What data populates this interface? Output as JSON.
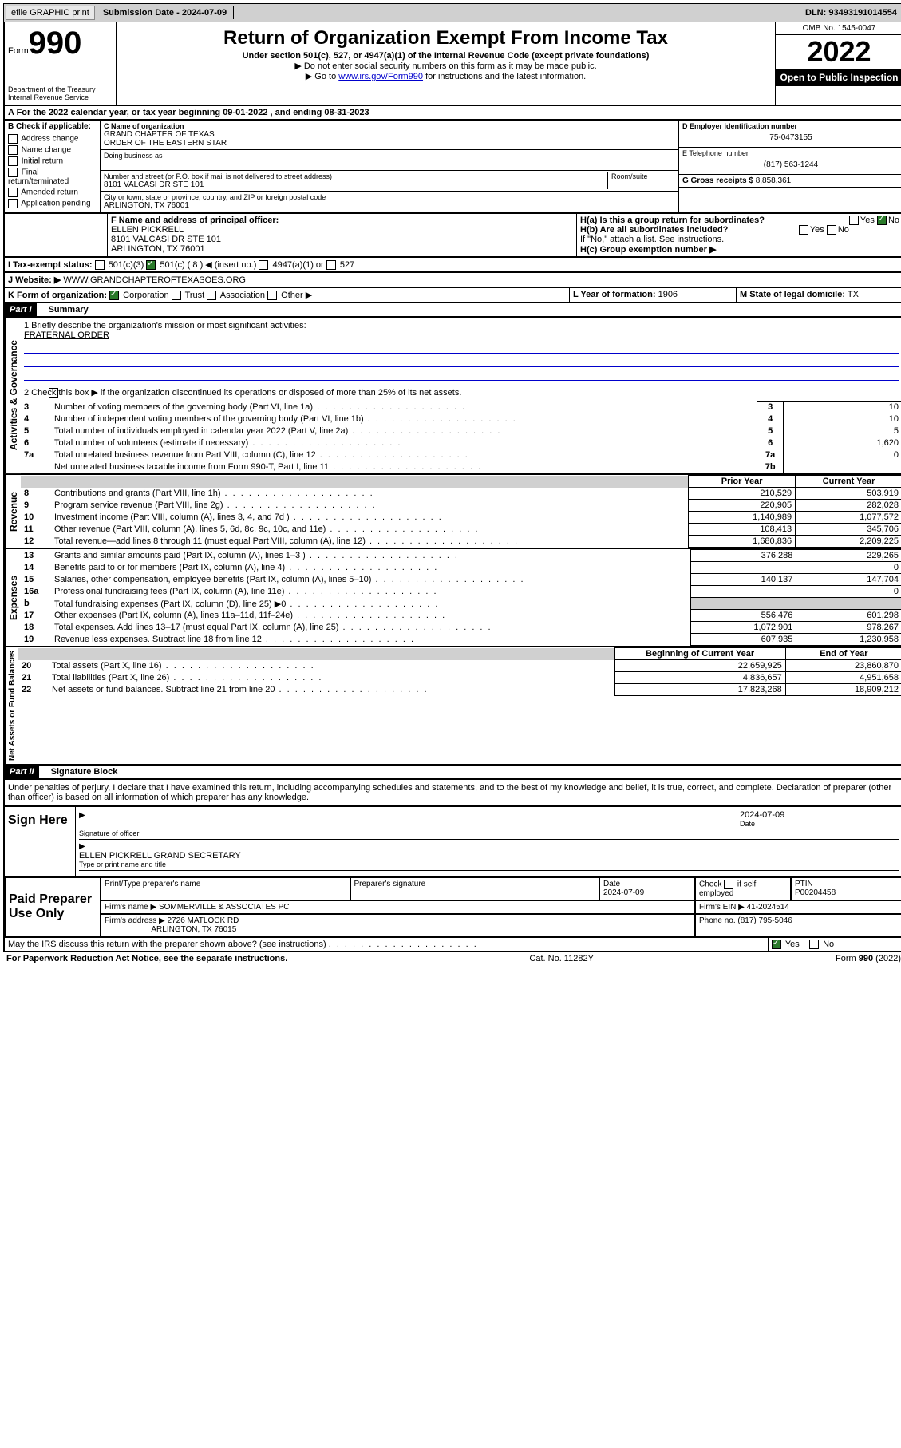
{
  "topbar": {
    "efile": "efile GRAPHIC print",
    "submission": "Submission Date - 2024-07-09",
    "dln": "DLN: 93493191014554"
  },
  "header": {
    "form_label": "Form",
    "form_num": "990",
    "title": "Return of Organization Exempt From Income Tax",
    "subtitle1": "Under section 501(c), 527, or 4947(a)(1) of the Internal Revenue Code (except private foundations)",
    "subtitle2": "▶ Do not enter social security numbers on this form as it may be made public.",
    "subtitle3_pre": "▶ Go to ",
    "subtitle3_link": "www.irs.gov/Form990",
    "subtitle3_post": " for instructions and the latest information.",
    "dept": "Department of the Treasury",
    "irs": "Internal Revenue Service",
    "omb": "OMB No. 1545-0047",
    "year": "2022",
    "open_public": "Open to Public Inspection"
  },
  "line_a": "A For the 2022 calendar year, or tax year beginning 09-01-2022    , and ending 08-31-2023",
  "section_b": {
    "label": "B Check if applicable:",
    "opts": [
      "Address change",
      "Name change",
      "Initial return",
      "Final return/terminated",
      "Amended return",
      "Application pending"
    ]
  },
  "section_c": {
    "label": "C Name of organization",
    "org": "GRAND CHAPTER OF TEXAS",
    "org2": "ORDER OF THE EASTERN STAR",
    "dba_label": "Doing business as",
    "addr_label": "Number and street (or P.O. box if mail is not delivered to street address)",
    "room_label": "Room/suite",
    "addr": "8101 VALCASI DR STE 101",
    "city_label": "City or town, state or province, country, and ZIP or foreign postal code",
    "city": "ARLINGTON, TX  76001"
  },
  "section_d": {
    "label": "D Employer identification number",
    "ein": "75-0473155"
  },
  "section_e": {
    "label": "E Telephone number",
    "phone": "(817) 563-1244"
  },
  "section_g": {
    "label": "G Gross receipts $",
    "amount": "8,858,361"
  },
  "section_f": {
    "label": "F Name and address of principal officer:",
    "name": "ELLEN PICKRELL",
    "addr1": "8101 VALCASI DR STE 101",
    "addr2": "ARLINGTON, TX  76001"
  },
  "section_h": {
    "ha": "H(a)  Is this a group return for subordinates?",
    "hb": "H(b)  Are all subordinates included?",
    "hb_note": "If \"No,\" attach a list. See instructions.",
    "hc": "H(c)  Group exemption number ▶",
    "yes": "Yes",
    "no": "No"
  },
  "section_i": {
    "label": "I   Tax-exempt status:",
    "c3": "501(c)(3)",
    "c": "501(c) ( 8 ) ◀ (insert no.)",
    "a1": "4947(a)(1) or",
    "s527": "527"
  },
  "section_j": {
    "label": "J   Website: ▶",
    "url": "WWW.GRANDCHAPTEROFTEXASOES.ORG"
  },
  "section_k": {
    "label": "K Form of organization:",
    "corp": "Corporation",
    "trust": "Trust",
    "assoc": "Association",
    "other": "Other ▶"
  },
  "section_l": {
    "label": "L Year of formation:",
    "year": "1906"
  },
  "section_m": {
    "label": "M State of legal domicile:",
    "state": "TX"
  },
  "part1": {
    "header": "Part I",
    "title": "Summary",
    "line1_label": "1   Briefly describe the organization's mission or most significant activities:",
    "mission": "FRATERNAL ORDER",
    "sidebar_gov": "Activities & Governance",
    "line2": "2   Check this box ▶      if the organization discontinued its operations or disposed of more than 25% of its net assets.",
    "rows_gov": [
      {
        "n": "3",
        "t": "Number of voting members of the governing body (Part VI, line 1a)",
        "k": "3",
        "v": "10"
      },
      {
        "n": "4",
        "t": "Number of independent voting members of the governing body (Part VI, line 1b)",
        "k": "4",
        "v": "10"
      },
      {
        "n": "5",
        "t": "Total number of individuals employed in calendar year 2022 (Part V, line 2a)",
        "k": "5",
        "v": "5"
      },
      {
        "n": "6",
        "t": "Total number of volunteers (estimate if necessary)",
        "k": "6",
        "v": "1,620"
      },
      {
        "n": "7a",
        "t": "Total unrelated business revenue from Part VIII, column (C), line 12",
        "k": "7a",
        "v": "0"
      },
      {
        "n": "",
        "t": "Net unrelated business taxable income from Form 990-T, Part I, line 11",
        "k": "7b",
        "v": ""
      }
    ]
  },
  "revenue": {
    "sidebar": "Revenue",
    "prior_label": "Prior Year",
    "current_label": "Current Year",
    "rows": [
      {
        "n": "8",
        "t": "Contributions and grants (Part VIII, line 1h)",
        "p": "210,529",
        "c": "503,919"
      },
      {
        "n": "9",
        "t": "Program service revenue (Part VIII, line 2g)",
        "p": "220,905",
        "c": "282,028"
      },
      {
        "n": "10",
        "t": "Investment income (Part VIII, column (A), lines 3, 4, and 7d )",
        "p": "1,140,989",
        "c": "1,077,572"
      },
      {
        "n": "11",
        "t": "Other revenue (Part VIII, column (A), lines 5, 6d, 8c, 9c, 10c, and 11e)",
        "p": "108,413",
        "c": "345,706"
      },
      {
        "n": "12",
        "t": "Total revenue—add lines 8 through 11 (must equal Part VIII, column (A), line 12)",
        "p": "1,680,836",
        "c": "2,209,225"
      }
    ]
  },
  "expenses": {
    "sidebar": "Expenses",
    "rows": [
      {
        "n": "13",
        "t": "Grants and similar amounts paid (Part IX, column (A), lines 1–3 )",
        "p": "376,288",
        "c": "229,265"
      },
      {
        "n": "14",
        "t": "Benefits paid to or for members (Part IX, column (A), line 4)",
        "p": "",
        "c": "0"
      },
      {
        "n": "15",
        "t": "Salaries, other compensation, employee benefits (Part IX, column (A), lines 5–10)",
        "p": "140,137",
        "c": "147,704"
      },
      {
        "n": "16a",
        "t": "Professional fundraising fees (Part IX, column (A), line 11e)",
        "p": "",
        "c": "0"
      },
      {
        "n": "b",
        "t": "Total fundraising expenses (Part IX, column (D), line 25) ▶0",
        "p": "",
        "c": "",
        "gray": true
      },
      {
        "n": "17",
        "t": "Other expenses (Part IX, column (A), lines 11a–11d, 11f–24e)",
        "p": "556,476",
        "c": "601,298"
      },
      {
        "n": "18",
        "t": "Total expenses. Add lines 13–17 (must equal Part IX, column (A), line 25)",
        "p": "1,072,901",
        "c": "978,267"
      },
      {
        "n": "19",
        "t": "Revenue less expenses. Subtract line 18 from line 12",
        "p": "607,935",
        "c": "1,230,958"
      }
    ]
  },
  "netassets": {
    "sidebar": "Net Assets or Fund Balances",
    "begin_label": "Beginning of Current Year",
    "end_label": "End of Year",
    "rows": [
      {
        "n": "20",
        "t": "Total assets (Part X, line 16)",
        "p": "22,659,925",
        "c": "23,860,870"
      },
      {
        "n": "21",
        "t": "Total liabilities (Part X, line 26)",
        "p": "4,836,657",
        "c": "4,951,658"
      },
      {
        "n": "22",
        "t": "Net assets or fund balances. Subtract line 21 from line 20",
        "p": "17,823,268",
        "c": "18,909,212"
      }
    ]
  },
  "part2": {
    "header": "Part II",
    "title": "Signature Block",
    "declaration": "Under penalties of perjury, I declare that I have examined this return, including accompanying schedules and statements, and to the best of my knowledge and belief, it is true, correct, and complete. Declaration of preparer (other than officer) is based on all information of which preparer has any knowledge."
  },
  "sign": {
    "label": "Sign Here",
    "sig_label": "Signature of officer",
    "date": "2024-07-09",
    "date_label": "Date",
    "name": "ELLEN PICKRELL GRAND SECRETARY",
    "name_label": "Type or print name and title"
  },
  "paid": {
    "label": "Paid Preparer Use Only",
    "h1": "Print/Type preparer's name",
    "h2": "Preparer's signature",
    "h3": "Date",
    "date": "2024-07-09",
    "h4_a": "Check",
    "h4_b": "if self-employed",
    "h5": "PTIN",
    "ptin": "P00204458",
    "firm_name_label": "Firm's name    ▶",
    "firm_name": "SOMMERVILLE & ASSOCIATES PC",
    "firm_ein_label": "Firm's EIN ▶",
    "firm_ein": "41-2024514",
    "firm_addr_label": "Firm's address ▶",
    "firm_addr1": "2726 MATLOCK RD",
    "firm_addr2": "ARLINGTON, TX  76015",
    "phone_label": "Phone no.",
    "phone": "(817) 795-5046"
  },
  "footer": {
    "discuss": "May the IRS discuss this return with the preparer shown above? (see instructions)",
    "yes": "Yes",
    "no": "No",
    "paperwork": "For Paperwork Reduction Act Notice, see the separate instructions.",
    "cat": "Cat. No. 11282Y",
    "form": "Form 990 (2022)"
  }
}
